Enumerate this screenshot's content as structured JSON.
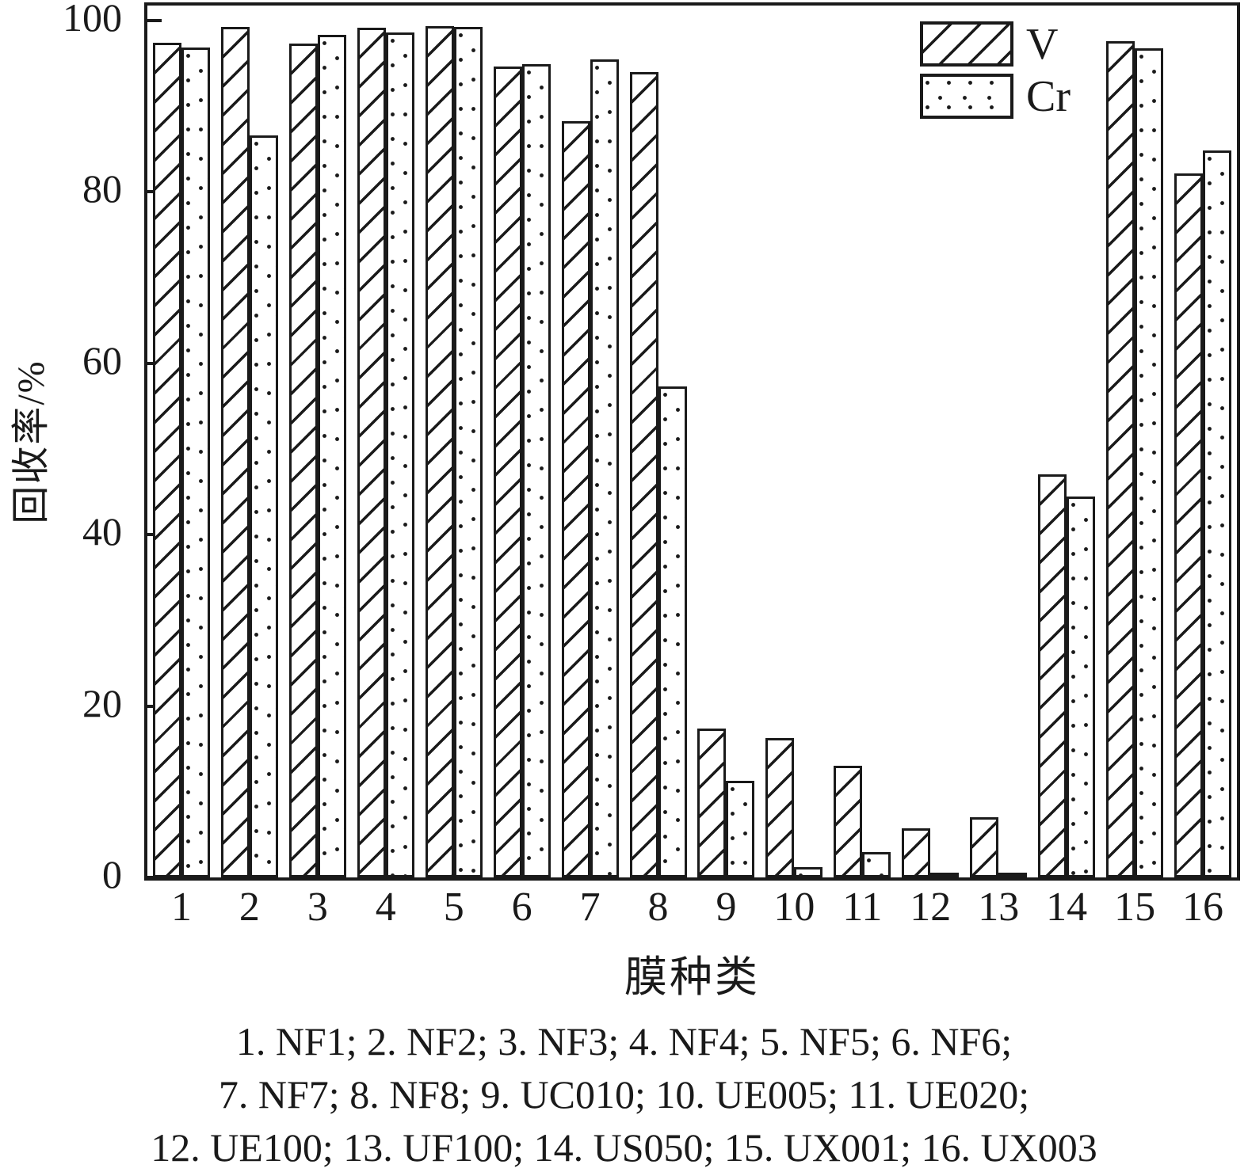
{
  "chart_data": {
    "type": "bar",
    "title": "",
    "xlabel": "膜种类",
    "ylabel": "回收率/%",
    "ylim": [
      0,
      100
    ],
    "yticks": [
      0,
      20,
      40,
      60,
      80,
      100
    ],
    "grid": false,
    "legend_position": "top-right",
    "categories": [
      "1",
      "2",
      "3",
      "4",
      "5",
      "6",
      "7",
      "8",
      "9",
      "10",
      "11",
      "12",
      "13",
      "14",
      "15",
      "16"
    ],
    "series": [
      {
        "name": "V",
        "pattern": "diagonal-hatch",
        "values": [
          97.4,
          99.3,
          97.3,
          99.2,
          99.4,
          94.6,
          88.3,
          94.0,
          17.4,
          16.3,
          13.0,
          5.7,
          7.0,
          47.0,
          97.6,
          82.2
        ]
      },
      {
        "name": "Cr",
        "pattern": "dots",
        "values": [
          96.9,
          86.6,
          98.3,
          98.6,
          99.3,
          94.9,
          95.5,
          57.3,
          11.3,
          1.2,
          3.0,
          0.2,
          0.5,
          44.5,
          96.8,
          84.8
        ]
      }
    ],
    "caption_lines": [
      "1. NF1; 2. NF2; 3. NF3; 4. NF4; 5. NF5; 6. NF6;",
      "7. NF7; 8. NF8; 9. UC010; 10. UE005; 11. UE020;",
      "12. UE100; 13. UF100; 14. US050; 15. UX001; 16. UX003"
    ],
    "colors": {
      "ink": "#1a1a1a",
      "background": "#ffffff"
    }
  }
}
